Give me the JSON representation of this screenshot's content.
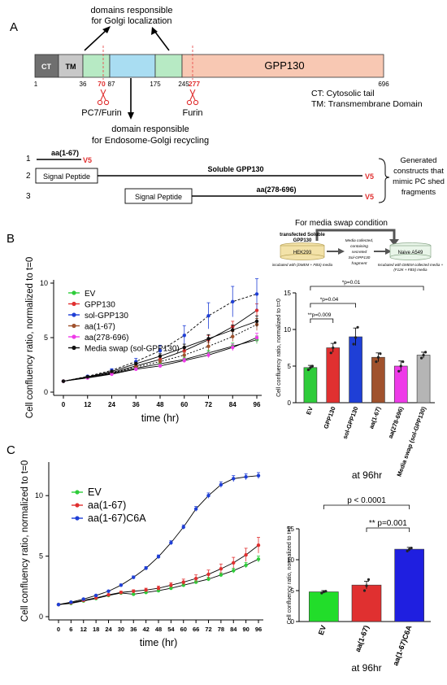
{
  "panel_a": {
    "label": "A",
    "golgi_note": [
      "domains responsible",
      "for Golgi localization"
    ],
    "recycling_note": [
      "domain responsible",
      "for Endosome-Golgi recycling"
    ],
    "ct_label": "CT",
    "tm_label": "TM",
    "protein_name": "GPP130",
    "positions": [
      "1",
      "36",
      "87",
      "175",
      "245",
      "696"
    ],
    "cut_sites": [
      "70",
      "277"
    ],
    "enzyme_left": "PC7/Furin",
    "enzyme_right": "Furin",
    "legend": [
      "CT: Cytosolic tail",
      "TM: Transmembrane Domain"
    ],
    "constructs": [
      {
        "num": "1",
        "name": "aa(1-67)",
        "tag": "V5"
      },
      {
        "num": "2",
        "signal": "Signal Peptide",
        "name": "Soluble GPP130",
        "tag": "V5"
      },
      {
        "num": "3",
        "signal": "Signal Peptide",
        "name": "aa(278-696)",
        "tag": "V5"
      }
    ],
    "constructs_note": [
      "Generated",
      "constructs that",
      "mimic PC shed",
      "fragments"
    ]
  },
  "panel_b": {
    "label": "B",
    "swap_title": "For media swap condition",
    "swap_source_title": [
      "transfected Soluble",
      "GPP130"
    ],
    "swap_source_cell": "HEK293",
    "swap_source_note": "incubated with (DMEM + FBS) media",
    "swap_mid_note": [
      "Media collected,",
      "containing",
      "secreted",
      "Sol-GPP130",
      "fragment"
    ],
    "swap_target_cell": "Naive A549",
    "swap_target_note": [
      "Incubated with DMEM collected media +",
      "(F12K + FBS) media"
    ],
    "colors": {
      "ev": "#2ecc3a",
      "gpp130": "#e03030",
      "sol": "#1f3fd6",
      "aa167": "#a0522d",
      "aa278": "#ee3be8",
      "swap": "#111111"
    },
    "line_chart": {
      "type": "line",
      "ylabel": "Cell confluency ratio, normalized to t=0",
      "xlabel": "time (hr)",
      "ylim": [
        0,
        10
      ],
      "yticks": [
        0,
        5,
        10
      ],
      "x": [
        0,
        12,
        24,
        36,
        48,
        60,
        72,
        84,
        96
      ],
      "series": [
        {
          "name": "EV",
          "color": "#2ecc3a",
          "values": [
            1,
            1.35,
            1.7,
            2.2,
            2.6,
            3.0,
            3.6,
            4.2,
            4.8
          ],
          "err": [
            0,
            0.05,
            0.08,
            0.1,
            0.15,
            0.2,
            0.25,
            0.3,
            0.35
          ]
        },
        {
          "name": "GPP130",
          "color": "#e03030",
          "values": [
            1,
            1.4,
            1.8,
            2.4,
            3.0,
            3.8,
            4.8,
            6.0,
            7.5
          ],
          "err": [
            0,
            0.06,
            0.1,
            0.15,
            0.2,
            0.3,
            0.4,
            0.5,
            0.6
          ]
        },
        {
          "name": "sol-GPP130",
          "color": "#1f3fd6",
          "values": [
            1,
            1.45,
            2.0,
            2.8,
            3.8,
            5.2,
            7.0,
            8.3,
            9.0
          ],
          "err": [
            0,
            0.08,
            0.15,
            0.3,
            0.5,
            0.9,
            1.2,
            1.4,
            1.4
          ]
        },
        {
          "name": "aa(1-67)",
          "color": "#a0522d",
          "values": [
            1,
            1.35,
            1.75,
            2.3,
            2.8,
            3.4,
            4.2,
            5.1,
            6.2
          ],
          "err": [
            0,
            0.05,
            0.08,
            0.12,
            0.18,
            0.25,
            0.35,
            0.45,
            0.55
          ]
        },
        {
          "name": "aa(278-696)",
          "color": "#ee3be8",
          "values": [
            1,
            1.3,
            1.65,
            2.1,
            2.4,
            2.9,
            3.4,
            4.1,
            5.0
          ],
          "err": [
            0,
            0.05,
            0.08,
            0.1,
            0.15,
            0.2,
            0.25,
            0.3,
            0.4
          ]
        },
        {
          "name": "Media swap (sol-GPP130)",
          "color": "#111111",
          "values": [
            1,
            1.4,
            1.9,
            2.6,
            3.3,
            4.1,
            4.9,
            5.7,
            6.5
          ],
          "err": [
            0,
            0.06,
            0.1,
            0.15,
            0.22,
            0.3,
            0.38,
            0.45,
            0.5
          ]
        }
      ]
    },
    "bar_chart": {
      "type": "bar",
      "ylabel": "Cell confluency ratio, normalized to t=0",
      "ylim": [
        0,
        15
      ],
      "yticks": [
        0,
        5,
        10,
        15
      ],
      "categories": [
        "EV",
        "GPP130",
        "sol-GPP130",
        "aa(1-67)",
        "aa(278-696)",
        "Media swap (sol-GPP130)"
      ],
      "values": [
        4.8,
        7.5,
        9.0,
        6.2,
        5.0,
        6.5
      ],
      "errors": [
        0.3,
        0.6,
        1.2,
        0.6,
        0.7,
        0.4
      ],
      "colors": [
        "#2ecc3a",
        "#e03030",
        "#1f3fd6",
        "#a0522d",
        "#ee3be8",
        "#b5b5b5"
      ],
      "points": [
        [
          4.5,
          4.8,
          5.0
        ],
        [
          6.8,
          7.5,
          8.2
        ],
        [
          8.0,
          8.9,
          10.3
        ],
        [
          5.6,
          6.2,
          6.7
        ],
        [
          4.3,
          5.0,
          5.6
        ],
        [
          6.1,
          6.5,
          6.9
        ]
      ],
      "brackets": [
        {
          "from": 0,
          "to": 1,
          "label": "**p=0.009"
        },
        {
          "from": 0,
          "to": 2,
          "label": "*p=0.04"
        },
        {
          "from": 0,
          "to": 5,
          "label": "*p=0.01"
        }
      ],
      "caption": "at 96hr"
    }
  },
  "panel_c": {
    "label": "C",
    "line_chart": {
      "type": "line",
      "ylabel": "Cell confluency ratio, normalized to t=0",
      "xlabel": "time (hr)",
      "ylim": [
        0,
        12.5
      ],
      "yticks": [
        0,
        5,
        10
      ],
      "x": [
        0,
        6,
        12,
        18,
        24,
        30,
        36,
        42,
        48,
        54,
        60,
        66,
        72,
        78,
        84,
        90,
        96
      ],
      "series": [
        {
          "name": "EV",
          "color": "#2ecc3a",
          "values": [
            1,
            1.1,
            1.3,
            1.5,
            1.75,
            1.95,
            1.85,
            2.0,
            2.15,
            2.35,
            2.6,
            2.85,
            3.1,
            3.45,
            3.8,
            4.25,
            4.75
          ],
          "err": [
            0,
            0.05,
            0.05,
            0.06,
            0.06,
            0.07,
            0.07,
            0.08,
            0.08,
            0.1,
            0.1,
            0.12,
            0.15,
            0.17,
            0.2,
            0.22,
            0.25
          ]
        },
        {
          "name": "aa(1-67)",
          "color": "#e03030",
          "values": [
            1,
            1.15,
            1.35,
            1.55,
            1.8,
            2.0,
            2.1,
            2.2,
            2.35,
            2.6,
            2.85,
            3.15,
            3.5,
            3.95,
            4.45,
            5.1,
            5.9
          ],
          "err": [
            0,
            0.05,
            0.06,
            0.07,
            0.08,
            0.1,
            0.12,
            0.15,
            0.18,
            0.2,
            0.25,
            0.3,
            0.35,
            0.4,
            0.45,
            0.55,
            0.65
          ]
        },
        {
          "name": "aa(1-67)C6A",
          "color": "#1f3fd6",
          "values": [
            1,
            1.2,
            1.45,
            1.75,
            2.1,
            2.6,
            3.25,
            4.0,
            4.95,
            6.1,
            7.4,
            8.9,
            10.0,
            10.9,
            11.4,
            11.55,
            11.65
          ],
          "err": [
            0,
            0.05,
            0.06,
            0.07,
            0.08,
            0.1,
            0.12,
            0.14,
            0.15,
            0.17,
            0.18,
            0.2,
            0.22,
            0.24,
            0.25,
            0.25,
            0.25
          ]
        }
      ]
    },
    "bar_chart": {
      "type": "bar",
      "ylabel": "Cell confluency ratio, normalized to t=0",
      "ylim": [
        0,
        15
      ],
      "yticks": [
        0,
        5,
        10,
        15
      ],
      "categories": [
        "EV",
        "aa(1-67)",
        "aa(1-67)C6A"
      ],
      "values": [
        4.8,
        5.9,
        11.7
      ],
      "errors": [
        0.2,
        0.6,
        0.3
      ],
      "colors": [
        "#22dd2a",
        "#e03030",
        "#1f1fe0"
      ],
      "points": [
        [
          4.6,
          4.8,
          4.9
        ],
        [
          5.0,
          5.8,
          6.8
        ],
        [
          11.4,
          11.7,
          11.9
        ]
      ],
      "brackets": [
        {
          "from": 1,
          "to": 2,
          "label": "** p=0.001"
        },
        {
          "from": 0,
          "to": 2,
          "label": "p < 0.0001"
        }
      ],
      "caption": "at 96hr"
    }
  }
}
